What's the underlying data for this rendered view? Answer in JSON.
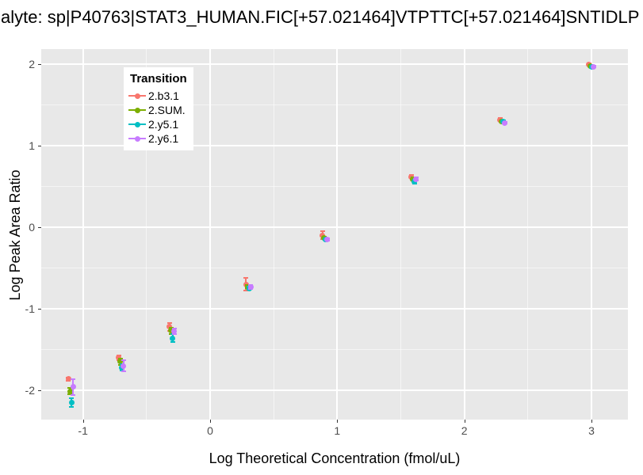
{
  "title": "alyte: sp|P40763|STAT3_HUMAN.FIC[+57.021464]VTPTTC[+57.021464]SNTIDLP",
  "axis": {
    "x_title": "Log Theoretical Concentration (fmol/uL)",
    "y_title": "Log Peak Area Ratio"
  },
  "legend": {
    "title": "Transition",
    "items": [
      {
        "label": "2.b3.1",
        "color": "#F8766D"
      },
      {
        "label": "2.SUM.",
        "color": "#7CAE00"
      },
      {
        "label": "2.y5.1",
        "color": "#00BFC4"
      },
      {
        "label": "2.y6.1",
        "color": "#C77CFF"
      }
    ]
  },
  "colors": {
    "panel_bg": "#E8E8E8",
    "grid_major": "#FFFFFF",
    "grid_minor": "#FFFFFF",
    "tick_label": "#4D4D4D",
    "text": "#000000"
  },
  "chart_data": {
    "type": "scatter",
    "title": "alyte: sp|P40763|STAT3_HUMAN.FIC[+57.021464]VTPTTC[+57.021464]SNTIDLP",
    "xlabel": "Log Theoretical Concentration (fmol/uL)",
    "ylabel": "Log Peak Area Ratio",
    "x": [
      -1.097,
      -0.699,
      -0.301,
      0.301,
      0.903,
      1.602,
      2.301,
      3.0
    ],
    "x_ticks": [
      -1,
      0,
      1,
      2,
      3
    ],
    "y_ticks": [
      2,
      1,
      0,
      -1,
      -2
    ],
    "xlim": [
      -1.33,
      3.29
    ],
    "ylim": [
      -2.36,
      2.18
    ],
    "grid": true,
    "error_bars": true,
    "legend_position": "inside-top-left",
    "series": [
      {
        "name": "2.b3.1",
        "color": "#F8766D",
        "y": [
          -1.86,
          -1.6,
          -1.22,
          -0.7,
          -0.1,
          0.62,
          1.32,
          2.0
        ],
        "err": [
          0.02,
          0.03,
          0.05,
          0.075,
          0.05,
          0.02,
          0.015,
          0.01
        ]
      },
      {
        "name": "2.SUM.",
        "color": "#7CAE00",
        "y": [
          -2.01,
          -1.65,
          -1.27,
          -0.73,
          -0.13,
          0.59,
          1.3,
          1.98
        ],
        "err": [
          0.04,
          0.04,
          0.04,
          0.02,
          0.015,
          0.02,
          0.01,
          0.01
        ]
      },
      {
        "name": "2.y5.1",
        "color": "#00BFC4",
        "y": [
          -2.15,
          -1.72,
          -1.36,
          -0.75,
          -0.15,
          0.56,
          1.3,
          1.97
        ],
        "err": [
          0.05,
          0.04,
          0.05,
          0.02,
          0.015,
          0.025,
          0.01,
          0.01
        ]
      },
      {
        "name": "2.y6.1",
        "color": "#C77CFF",
        "y": [
          -1.96,
          -1.7,
          -1.28,
          -0.73,
          -0.15,
          0.59,
          1.28,
          1.97
        ],
        "err": [
          0.095,
          0.07,
          0.035,
          0.025,
          0.015,
          0.02,
          0.01,
          0.01
        ]
      }
    ]
  }
}
